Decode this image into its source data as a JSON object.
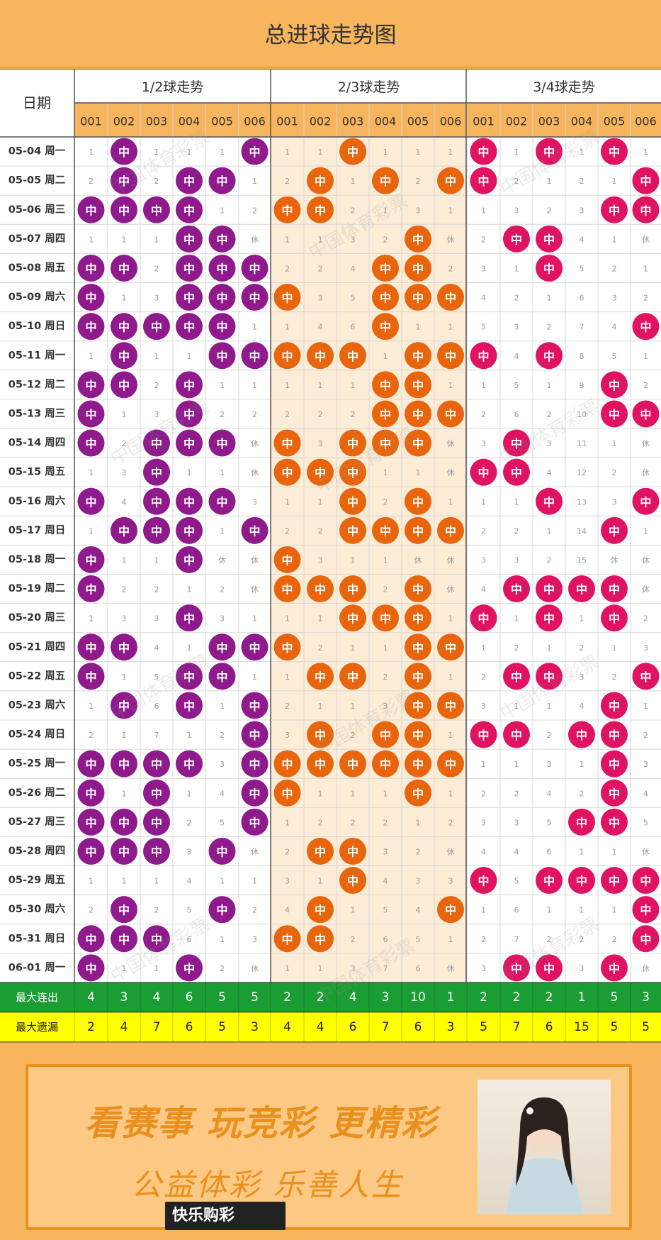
{
  "title": "总进球走势图",
  "hit_mark": "中",
  "rest_mark": "休",
  "colors": {
    "header_bg": "#f7b55d",
    "group_colors": [
      "#8e1a8c",
      "#e8650d",
      "#df1362"
    ],
    "stats_green": "#1a9e33",
    "stats_yellow": "#ffff00",
    "stats_text_green": "#ffffff",
    "stats_text_yellow": "#222222"
  },
  "chart_data": {
    "type": "table",
    "date_header": "日期",
    "groups": [
      {
        "name": "1/2球走势",
        "columns": [
          "001",
          "002",
          "003",
          "004",
          "005",
          "006"
        ]
      },
      {
        "name": "2/3球走势",
        "columns": [
          "001",
          "002",
          "003",
          "004",
          "005",
          "006"
        ]
      },
      {
        "name": "3/4球走势",
        "columns": [
          "001",
          "002",
          "003",
          "004",
          "005",
          "006"
        ]
      }
    ],
    "rows": [
      {
        "date": "05-04 周一",
        "cells": [
          "1",
          "中",
          "1",
          "1",
          "1",
          "中",
          "1",
          "1",
          "中",
          "1",
          "1",
          "1",
          "中",
          "1",
          "中",
          "1",
          "中",
          "1"
        ]
      },
      {
        "date": "05-05 周二",
        "cells": [
          "2",
          "中",
          "2",
          "中",
          "中",
          "1",
          "2",
          "中",
          "1",
          "中",
          "2",
          "中",
          "中",
          "2",
          "1",
          "2",
          "1",
          "中"
        ]
      },
      {
        "date": "05-06 周三",
        "cells": [
          "中",
          "中",
          "中",
          "中",
          "1",
          "2",
          "中",
          "中",
          "2",
          "1",
          "3",
          "1",
          "1",
          "3",
          "2",
          "3",
          "中",
          "中"
        ]
      },
      {
        "date": "05-07 周四",
        "cells": [
          "1",
          "1",
          "1",
          "中",
          "中",
          "休",
          "1",
          "1",
          "3",
          "2",
          "中",
          "休",
          "2",
          "中",
          "中",
          "4",
          "1",
          "休"
        ]
      },
      {
        "date": "05-08 周五",
        "cells": [
          "中",
          "中",
          "2",
          "中",
          "中",
          "中",
          "2",
          "2",
          "4",
          "中",
          "中",
          "2",
          "3",
          "1",
          "中",
          "5",
          "2",
          "1"
        ]
      },
      {
        "date": "05-09 周六",
        "cells": [
          "中",
          "1",
          "3",
          "中",
          "中",
          "中",
          "中",
          "3",
          "5",
          "中",
          "中",
          "中",
          "4",
          "2",
          "1",
          "6",
          "3",
          "2"
        ]
      },
      {
        "date": "05-10 周日",
        "cells": [
          "中",
          "中",
          "中",
          "中",
          "中",
          "1",
          "1",
          "4",
          "6",
          "中",
          "1",
          "1",
          "5",
          "3",
          "2",
          "7",
          "4",
          "中"
        ]
      },
      {
        "date": "05-11 周一",
        "cells": [
          "1",
          "中",
          "1",
          "1",
          "中",
          "中",
          "中",
          "中",
          "中",
          "1",
          "中",
          "中",
          "中",
          "4",
          "中",
          "8",
          "5",
          "1"
        ]
      },
      {
        "date": "05-12 周二",
        "cells": [
          "中",
          "中",
          "2",
          "中",
          "1",
          "1",
          "1",
          "1",
          "1",
          "中",
          "中",
          "1",
          "1",
          "5",
          "1",
          "9",
          "中",
          "2"
        ]
      },
      {
        "date": "05-13 周三",
        "cells": [
          "中",
          "1",
          "3",
          "中",
          "2",
          "2",
          "2",
          "2",
          "2",
          "中",
          "中",
          "中",
          "2",
          "6",
          "2",
          "10",
          "中",
          "中"
        ]
      },
      {
        "date": "05-14 周四",
        "cells": [
          "中",
          "2",
          "中",
          "中",
          "中",
          "休",
          "中",
          "3",
          "中",
          "中",
          "中",
          "休",
          "3",
          "中",
          "3",
          "11",
          "1",
          "休"
        ]
      },
      {
        "date": "05-15 周五",
        "cells": [
          "1",
          "3",
          "中",
          "1",
          "1",
          "休",
          "中",
          "中",
          "中",
          "1",
          "1",
          "休",
          "中",
          "中",
          "4",
          "12",
          "2",
          "休"
        ]
      },
      {
        "date": "05-16 周六",
        "cells": [
          "中",
          "4",
          "中",
          "中",
          "中",
          "3",
          "1",
          "1",
          "中",
          "2",
          "中",
          "1",
          "1",
          "1",
          "中",
          "13",
          "3",
          "中"
        ]
      },
      {
        "date": "05-17 周日",
        "cells": [
          "1",
          "中",
          "中",
          "中",
          "1",
          "中",
          "2",
          "2",
          "中",
          "中",
          "中",
          "中",
          "2",
          "2",
          "1",
          "14",
          "中",
          "1"
        ]
      },
      {
        "date": "05-18 周一",
        "cells": [
          "中",
          "1",
          "1",
          "中",
          "休",
          "休",
          "中",
          "3",
          "1",
          "1",
          "休",
          "休",
          "3",
          "3",
          "2",
          "15",
          "休",
          "休"
        ]
      },
      {
        "date": "05-19 周二",
        "cells": [
          "中",
          "2",
          "2",
          "1",
          "2",
          "休",
          "中",
          "中",
          "中",
          "2",
          "中",
          "休",
          "4",
          "中",
          "中",
          "中",
          "中",
          "休"
        ]
      },
      {
        "date": "05-20 周三",
        "cells": [
          "1",
          "3",
          "3",
          "中",
          "3",
          "1",
          "1",
          "1",
          "中",
          "中",
          "中",
          "1",
          "中",
          "1",
          "中",
          "1",
          "中",
          "2"
        ]
      },
      {
        "date": "05-21 周四",
        "cells": [
          "中",
          "中",
          "4",
          "1",
          "中",
          "中",
          "中",
          "2",
          "1",
          "1",
          "中",
          "中",
          "1",
          "2",
          "1",
          "2",
          "1",
          "3"
        ]
      },
      {
        "date": "05-22 周五",
        "cells": [
          "中",
          "1",
          "5",
          "中",
          "中",
          "1",
          "1",
          "中",
          "中",
          "2",
          "中",
          "1",
          "2",
          "中",
          "中",
          "3",
          "2",
          "中"
        ]
      },
      {
        "date": "05-23 周六",
        "cells": [
          "1",
          "中",
          "6",
          "中",
          "1",
          "中",
          "2",
          "1",
          "1",
          "3",
          "中",
          "中",
          "3",
          "1",
          "1",
          "4",
          "中",
          "1"
        ]
      },
      {
        "date": "05-24 周日",
        "cells": [
          "2",
          "1",
          "7",
          "1",
          "2",
          "中",
          "3",
          "中",
          "2",
          "中",
          "中",
          "1",
          "中",
          "中",
          "2",
          "中",
          "中",
          "2"
        ]
      },
      {
        "date": "05-25 周一",
        "cells": [
          "中",
          "中",
          "中",
          "中",
          "3",
          "中",
          "中",
          "中",
          "中",
          "中",
          "中",
          "中",
          "1",
          "1",
          "3",
          "1",
          "中",
          "3"
        ]
      },
      {
        "date": "05-26 周二",
        "cells": [
          "中",
          "1",
          "中",
          "1",
          "4",
          "中",
          "中",
          "1",
          "1",
          "1",
          "中",
          "1",
          "2",
          "2",
          "4",
          "2",
          "中",
          "4"
        ]
      },
      {
        "date": "05-27 周三",
        "cells": [
          "中",
          "中",
          "中",
          "2",
          "5",
          "中",
          "1",
          "2",
          "2",
          "2",
          "1",
          "2",
          "3",
          "3",
          "5",
          "中",
          "中",
          "5"
        ]
      },
      {
        "date": "05-28 周四",
        "cells": [
          "中",
          "中",
          "中",
          "3",
          "中",
          "休",
          "2",
          "中",
          "中",
          "3",
          "2",
          "休",
          "4",
          "4",
          "6",
          "1",
          "1",
          "休"
        ]
      },
      {
        "date": "05-29 周五",
        "cells": [
          "1",
          "1",
          "1",
          "4",
          "1",
          "1",
          "3",
          "1",
          "中",
          "4",
          "3",
          "3",
          "中",
          "5",
          "中",
          "中",
          "中",
          "中"
        ]
      },
      {
        "date": "05-30 周六",
        "cells": [
          "2",
          "中",
          "2",
          "5",
          "中",
          "2",
          "4",
          "中",
          "1",
          "5",
          "4",
          "中",
          "1",
          "6",
          "1",
          "1",
          "1",
          "中"
        ]
      },
      {
        "date": "05-31 周日",
        "cells": [
          "中",
          "中",
          "中",
          "6",
          "1",
          "3",
          "中",
          "中",
          "2",
          "6",
          "5",
          "1",
          "2",
          "7",
          "2",
          "2",
          "2",
          "中"
        ]
      },
      {
        "date": "06-01 周一",
        "cells": [
          "中",
          "1",
          "1",
          "中",
          "2",
          "休",
          "1",
          "1",
          "3",
          "7",
          "6",
          "休",
          "3",
          "中",
          "中",
          "3",
          "中",
          "休"
        ]
      }
    ],
    "stats": [
      {
        "label": "最大连出",
        "values": [
          "4",
          "3",
          "4",
          "6",
          "5",
          "5",
          "2",
          "2",
          "4",
          "3",
          "10",
          "1",
          "2",
          "2",
          "2",
          "1",
          "5",
          "3"
        ]
      },
      {
        "label": "最大遗漏",
        "values": [
          "2",
          "4",
          "7",
          "6",
          "5",
          "3",
          "4",
          "4",
          "6",
          "7",
          "6",
          "3",
          "5",
          "7",
          "6",
          "15",
          "5",
          "5"
        ]
      }
    ]
  },
  "watermark": "中国体育彩票",
  "banner": {
    "slogan_main": "看赛事 玩竞彩 更精彩",
    "slogan_sub": "公益体彩 乐善人生",
    "brand": "快乐购彩"
  }
}
